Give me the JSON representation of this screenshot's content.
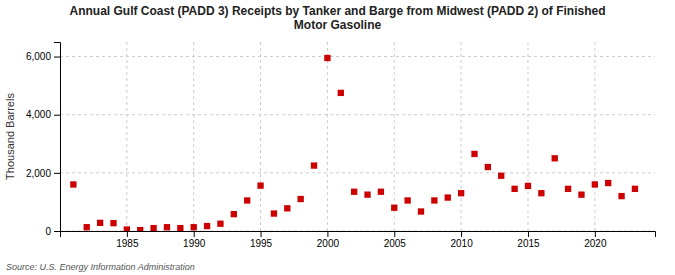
{
  "chart_data": {
    "type": "scatter",
    "title": "Annual Gulf Coast (PADD 3) Receipts by Tanker and Barge from Midwest (PADD 2) of Finished\nMotor Gasoline",
    "y_label": "Thousand Barrels",
    "source": "Source: U.S. Energy Information Administration",
    "color": "#cc0000",
    "marker": "square",
    "grid": true,
    "x": [
      1981,
      1982,
      1983,
      1984,
      1985,
      1986,
      1987,
      1988,
      1989,
      1990,
      1991,
      1992,
      1993,
      1994,
      1995,
      1996,
      1997,
      1998,
      1999,
      2000,
      2001,
      2002,
      2003,
      2004,
      2005,
      2006,
      2007,
      2008,
      2009,
      2010,
      2011,
      2012,
      2013,
      2014,
      2015,
      2016,
      2017,
      2018,
      2019,
      2020,
      2021,
      2022,
      2023
    ],
    "values": [
      1600,
      130,
      280,
      270,
      50,
      30,
      100,
      130,
      100,
      130,
      170,
      250,
      580,
      1050,
      1560,
      600,
      780,
      1100,
      2250,
      5950,
      4750,
      1350,
      1250,
      1350,
      800,
      1050,
      670,
      1050,
      1150,
      1300,
      2650,
      2200,
      1900,
      1450,
      1550,
      1300,
      2500,
      1450,
      1250,
      1600,
      1650,
      1200,
      1450
    ],
    "xlim": [
      1980,
      2024.5
    ],
    "xticks": [
      1985,
      1990,
      1995,
      2000,
      2005,
      2010,
      2015,
      2020
    ],
    "ylim": [
      0,
      6500
    ],
    "yticks": [
      0,
      {
        "value": 2000,
        "label": "2,000"
      },
      {
        "value": 4000,
        "label": "4,000"
      },
      {
        "value": 6000,
        "label": "6,000"
      }
    ]
  }
}
